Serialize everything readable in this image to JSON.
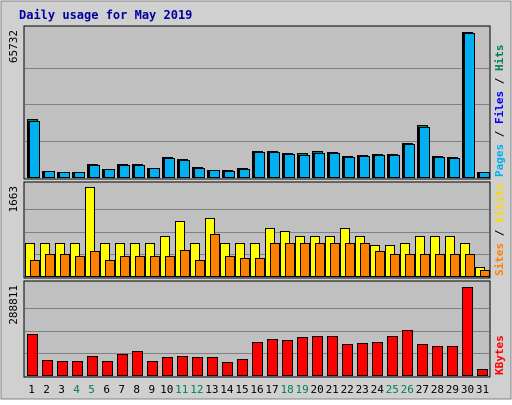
{
  "chart_data": {
    "type": "bar",
    "title": "Daily usage for May 2019",
    "days": [
      "1",
      "2",
      "3",
      "4",
      "5",
      "6",
      "7",
      "8",
      "9",
      "10",
      "11",
      "12",
      "13",
      "14",
      "15",
      "16",
      "17",
      "18",
      "19",
      "20",
      "21",
      "22",
      "23",
      "24",
      "25",
      "26",
      "27",
      "28",
      "29",
      "30",
      "31"
    ],
    "weekend_days": [
      "4",
      "5",
      "11",
      "12",
      "18",
      "19",
      "25",
      "26"
    ],
    "panels": [
      {
        "id": "top",
        "max_label": "65732",
        "ymax": 65732,
        "legend": [
          {
            "text": "Pages",
            "color": "#00b0f0"
          },
          {
            "text": "Files",
            "color": "#0000ff"
          },
          {
            "text": "Hits",
            "color": "#008060"
          }
        ],
        "series": [
          {
            "name": "Hits",
            "color": "#008060",
            "values": [
              26100,
              2800,
              2300,
              2300,
              5800,
              3500,
              5800,
              5800,
              4200,
              9000,
              8100,
              4300,
              3300,
              3000,
              4000,
              11700,
              11600,
              10800,
              10600,
              11600,
              11400,
              9600,
              10100,
              10200,
              10300,
              15400,
              23400,
              9300,
              9100,
              65400,
              2400
            ]
          },
          {
            "name": "Files",
            "color": "#0000ff",
            "values": [
              25300,
              2700,
              2200,
              2200,
              5600,
              3400,
              5600,
              5600,
              4000,
              8500,
              7800,
              4100,
              3200,
              2900,
              3800,
              11100,
              11100,
              10300,
              10100,
              11000,
              10900,
              9200,
              9600,
              9700,
              9800,
              14700,
              22700,
              8900,
              8700,
              64800,
              2300
            ]
          },
          {
            "name": "Pages",
            "color": "#00b0f0",
            "values": [
              25300,
              2700,
              2200,
              2200,
              5600,
              3400,
              5600,
              5600,
              4000,
              8500,
              7800,
              4100,
              3200,
              2900,
              3800,
              11100,
              11100,
              10300,
              10100,
              11000,
              10900,
              9200,
              9600,
              9700,
              9800,
              14700,
              22700,
              8900,
              8700,
              64800,
              2300
            ]
          }
        ]
      },
      {
        "id": "middle",
        "max_label": "1663",
        "ymax": 1663,
        "legend": [
          {
            "text": "Sites",
            "color": "#ff8000"
          },
          {
            "text": "Visits",
            "color": "#ffd700"
          }
        ],
        "series": [
          {
            "name": "Visits",
            "color": "#ffff00",
            "values": [
              620,
              620,
              620,
              620,
              1663,
              620,
              620,
              620,
              620,
              740,
              1020,
              620,
              1090,
              620,
              620,
              620,
              900,
              850,
              740,
              740,
              740,
              900,
              740,
              580,
              580,
              620,
              740,
              740,
              740,
              620,
              170
            ]
          },
          {
            "name": "Sites",
            "color": "#ff8000",
            "values": [
              300,
              410,
              410,
              380,
              460,
              300,
              380,
              380,
              380,
              380,
              490,
              300,
              780,
              380,
              340,
              340,
              610,
              610,
              610,
              610,
              610,
              610,
              610,
              460,
              410,
              410,
              410,
              410,
              410,
              410,
              110
            ]
          }
        ]
      },
      {
        "id": "bottom",
        "max_label": "288811",
        "ymax": 288811,
        "legend": [
          {
            "text": "KBytes",
            "color": "#ff0000"
          }
        ],
        "series": [
          {
            "name": "KBytes",
            "color": "#ff0000",
            "values": [
              134000,
              50000,
              46000,
              46000,
              61000,
              46000,
              68000,
              78000,
              46000,
              57000,
              61000,
              57000,
              57000,
              42000,
              53000,
              107000,
              118000,
              113000,
              122000,
              126000,
              126000,
              99000,
              103000,
              107000,
              126000,
              145000,
              99000,
              95000,
              95000,
              285000,
              20000
            ]
          }
        ]
      }
    ]
  }
}
